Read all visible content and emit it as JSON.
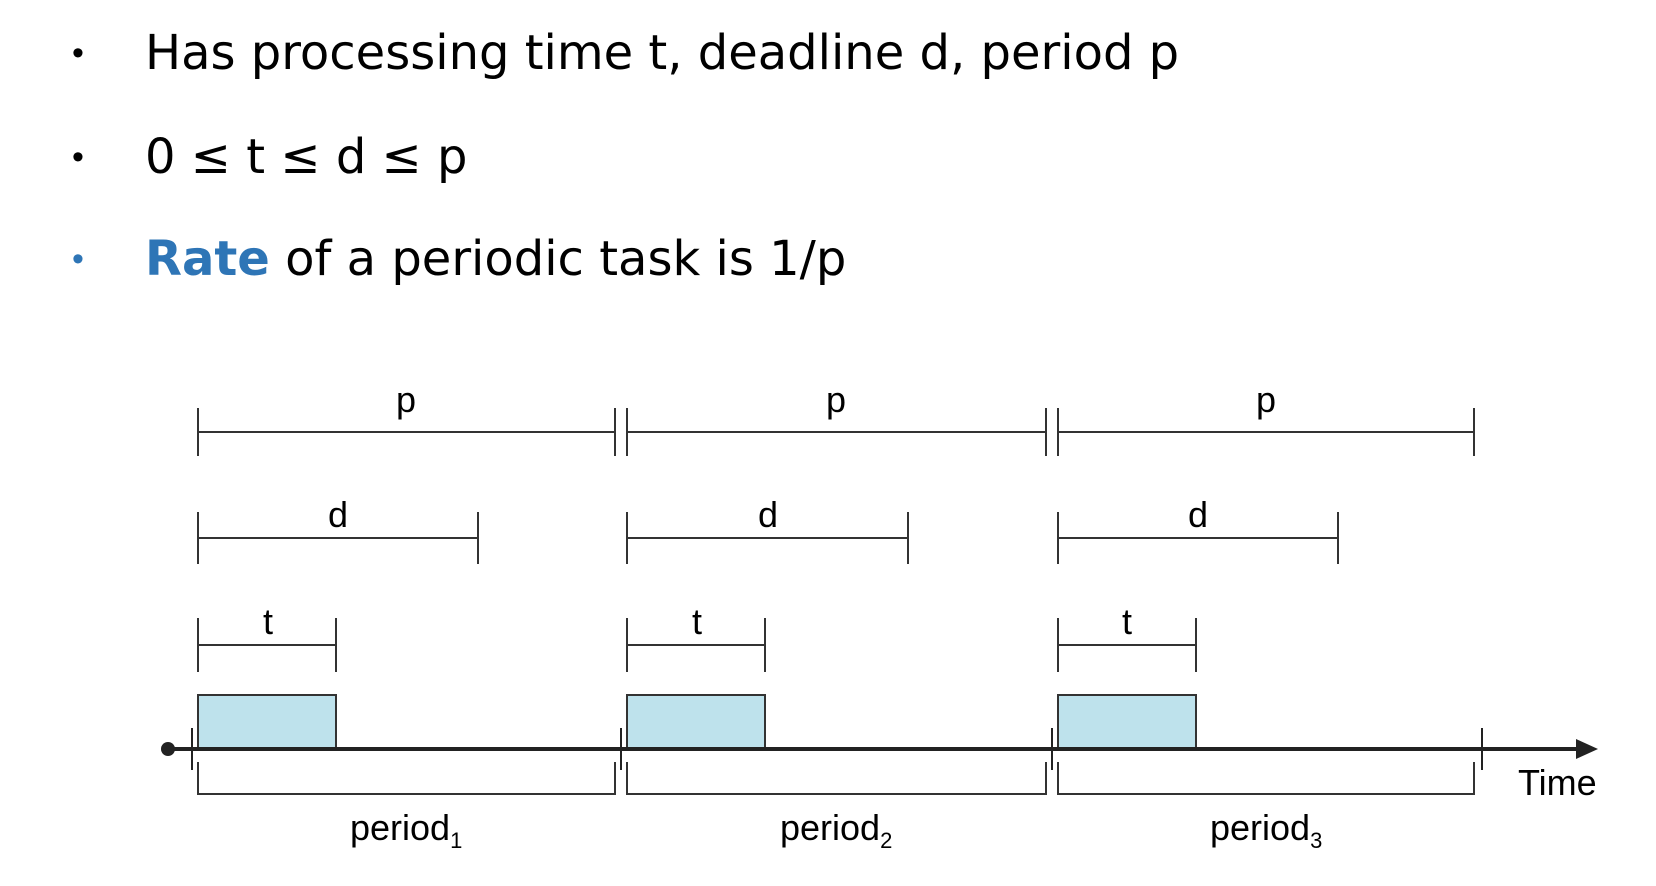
{
  "bullets": [
    {
      "marker": "•",
      "text": "Has processing time t, deadline d, period p"
    },
    {
      "marker": "•",
      "text": "0 ≤ t ≤ d ≤ p"
    },
    {
      "marker": "•",
      "highlight": "Rate",
      "text": " of a periodic task is 1/p"
    }
  ],
  "diagram": {
    "labels": {
      "p": "p",
      "d": "d",
      "t": "t"
    },
    "axis_label": "Time",
    "periods": [
      {
        "base": "period",
        "sub": "1"
      },
      {
        "base": "period",
        "sub": "2"
      },
      {
        "base": "period",
        "sub": "3"
      }
    ],
    "colors": {
      "accent": "#2E75B6",
      "task_fill": "#BEE2EC",
      "line": "#333333"
    }
  }
}
